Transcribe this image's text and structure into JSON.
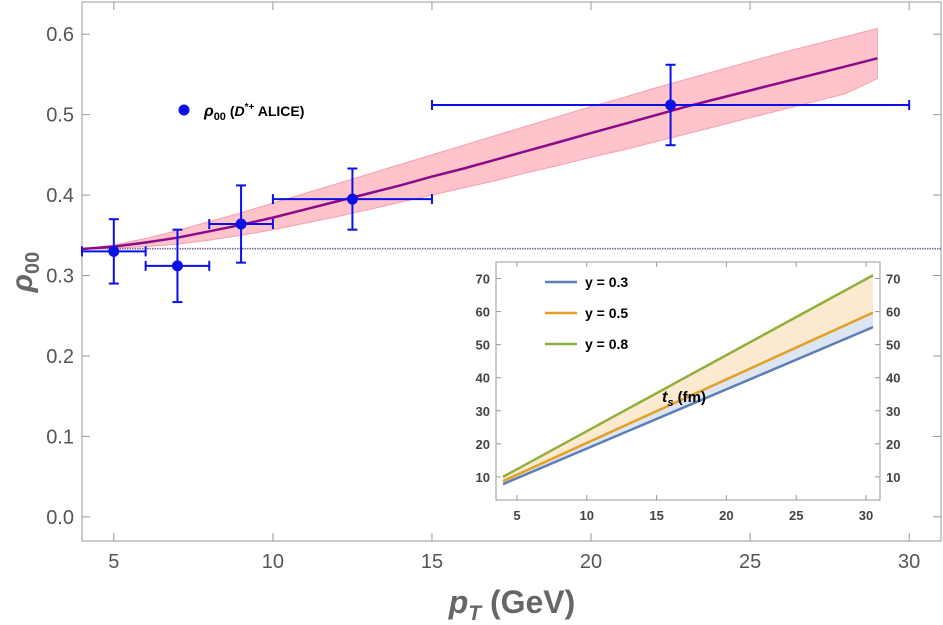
{
  "chart_data": [
    {
      "type": "scatter",
      "xlabel_symbol": "p",
      "xlabel_sub": "T",
      "xlabel_unit": "(GeV)",
      "ylabel_symbol": "ρ",
      "ylabel_sub": "00",
      "xlim": [
        4,
        31
      ],
      "ylim": [
        -0.03,
        0.64
      ],
      "xticks": [
        5,
        10,
        15,
        20,
        25,
        30
      ],
      "yticks": [
        0.0,
        0.1,
        0.2,
        0.3,
        0.4,
        0.5,
        0.6
      ],
      "ytick_labels": [
        "0.0",
        "0.1",
        "0.2",
        "0.3",
        "0.4",
        "0.5",
        "0.6"
      ],
      "reference_line_y": 0.3333,
      "legend": {
        "symbol_label": "ρ",
        "symbol_sub": "00",
        "label_pre": "(",
        "particle": "D",
        "particle_sup": "*+",
        "label_post": " ALICE)",
        "placement": "top-left",
        "color": "#0a10e6"
      },
      "points": [
        {
          "x": 5.0,
          "y": 0.33,
          "xerr": [
            1.0,
            1.0
          ],
          "yerr": [
            0.04,
            0.04
          ]
        },
        {
          "x": 7.0,
          "y": 0.312,
          "xerr": [
            1.0,
            1.0
          ],
          "yerr": [
            0.045,
            0.045
          ]
        },
        {
          "x": 9.0,
          "y": 0.364,
          "xerr": [
            1.0,
            1.0
          ],
          "yerr": [
            0.048,
            0.048
          ]
        },
        {
          "x": 12.5,
          "y": 0.395,
          "xerr": [
            2.5,
            2.5
          ],
          "yerr": [
            0.038,
            0.038
          ]
        },
        {
          "x": 22.5,
          "y": 0.512,
          "xerr": [
            7.5,
            7.5
          ],
          "yerr": [
            0.05,
            0.05
          ]
        }
      ],
      "curve": {
        "color": "#8b0a8b",
        "x": [
          4,
          5,
          6,
          7,
          8,
          9,
          10,
          11,
          12,
          13,
          14,
          15,
          16,
          17,
          18,
          19,
          20,
          21,
          22,
          23,
          24,
          25,
          26,
          27,
          28,
          29
        ],
        "y": [
          0.333,
          0.336,
          0.341,
          0.347,
          0.355,
          0.363,
          0.372,
          0.382,
          0.392,
          0.402,
          0.412,
          0.423,
          0.433,
          0.444,
          0.455,
          0.466,
          0.477,
          0.488,
          0.499,
          0.51,
          0.52,
          0.53,
          0.54,
          0.55,
          0.56,
          0.57
        ]
      },
      "band": {
        "color": "#ffc0c8",
        "lower": [
          0.333,
          0.334,
          0.336,
          0.339,
          0.344,
          0.35,
          0.357,
          0.365,
          0.373,
          0.382,
          0.391,
          0.4,
          0.409,
          0.418,
          0.428,
          0.437,
          0.447,
          0.456,
          0.466,
          0.476,
          0.486,
          0.496,
          0.506,
          0.516,
          0.526,
          0.545
        ],
        "upper": [
          0.333,
          0.338,
          0.346,
          0.356,
          0.367,
          0.378,
          0.39,
          0.402,
          0.414,
          0.426,
          0.438,
          0.45,
          0.462,
          0.474,
          0.486,
          0.498,
          0.51,
          0.521,
          0.533,
          0.544,
          0.555,
          0.566,
          0.577,
          0.587,
          0.597,
          0.607
        ]
      }
    },
    {
      "type": "line",
      "annotation_symbol": "t",
      "annotation_sub": "s",
      "annotation_unit": "(fm)",
      "xlim": [
        3.5,
        31
      ],
      "ylim": [
        3,
        75
      ],
      "xticks": [
        5,
        10,
        15,
        20,
        25,
        30
      ],
      "yticks": [
        10,
        20,
        30,
        40,
        50,
        60,
        70
      ],
      "legend_placement": "top-left",
      "series": [
        {
          "name": "y = 0.3",
          "color": "#5b7fb5",
          "x": [
            4,
            30.5
          ],
          "values": [
            7.8,
            55.3
          ]
        },
        {
          "name": "y = 0.5",
          "color": "#e3a024",
          "x": [
            4,
            30.5
          ],
          "values": [
            8.7,
            59.7
          ]
        },
        {
          "name": "y = 0.8",
          "color": "#8fb03a",
          "x": [
            4,
            30.5
          ],
          "values": [
            10.0,
            71.0
          ]
        }
      ],
      "fill_between": [
        {
          "lower": "y = 0.3",
          "upper": "y = 0.5",
          "color": "#dde5f2"
        },
        {
          "lower": "y = 0.5",
          "upper": "y = 0.8",
          "color": "#fbe9d0"
        }
      ]
    }
  ]
}
